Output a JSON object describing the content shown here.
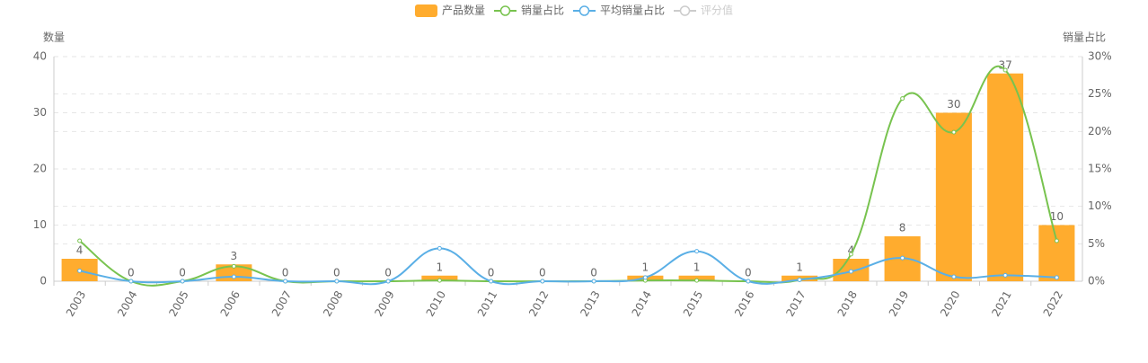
{
  "chart_data": {
    "type": "bar",
    "categories": [
      "2003",
      "2004",
      "2005",
      "2006",
      "2007",
      "2008",
      "2009",
      "2010",
      "2011",
      "2012",
      "2013",
      "2014",
      "2015",
      "2016",
      "2017",
      "2018",
      "2019",
      "2020",
      "2021",
      "2022"
    ],
    "y_label": "数量",
    "y2_label": "销量占比",
    "ylim": [
      0,
      40
    ],
    "yticks": [
      0,
      10,
      20,
      30,
      40
    ],
    "y2lim": [
      0,
      30
    ],
    "y2ticks": [
      {
        "value": 0,
        "label": "0%"
      },
      {
        "value": 5,
        "label": "5%"
      },
      {
        "value": 10,
        "label": "10%"
      },
      {
        "value": 15,
        "label": "15%"
      },
      {
        "value": 20,
        "label": "20%"
      },
      {
        "value": 25,
        "label": "25%"
      },
      {
        "value": 30,
        "label": "30%"
      }
    ],
    "grid": true,
    "series": [
      {
        "name": "产品数量",
        "type": "bar",
        "color": "#ffac2e",
        "values": [
          4,
          0,
          0,
          3,
          0,
          0,
          0,
          1,
          0,
          0,
          0,
          1,
          1,
          0,
          1,
          4,
          8,
          30,
          37,
          10
        ]
      },
      {
        "name": "销量占比",
        "type": "line",
        "axis": "y2",
        "color": "#78c34f",
        "values": [
          5.4,
          0,
          0,
          2.0,
          0,
          0,
          0,
          0.1,
          0,
          0,
          0,
          0.1,
          0.1,
          0,
          0.2,
          3.6,
          24.4,
          19.9,
          28.2,
          5.4
        ]
      },
      {
        "name": "平均销量占比",
        "type": "line",
        "axis": "y2",
        "color": "#5aafe6",
        "values": [
          1.4,
          0,
          0,
          0.6,
          0,
          0,
          0,
          4.4,
          0,
          0,
          0,
          0.5,
          4.0,
          0,
          0.2,
          1.3,
          3.1,
          0.6,
          0.8,
          0.5
        ]
      },
      {
        "name": "评分值",
        "type": "line",
        "axis": "y2",
        "color": "#cccccc",
        "hidden": true,
        "values": [
          null,
          null,
          null,
          null,
          null,
          null,
          null,
          null,
          null,
          null,
          null,
          null,
          null,
          null,
          null,
          null,
          null,
          null,
          null,
          null
        ]
      }
    ]
  }
}
